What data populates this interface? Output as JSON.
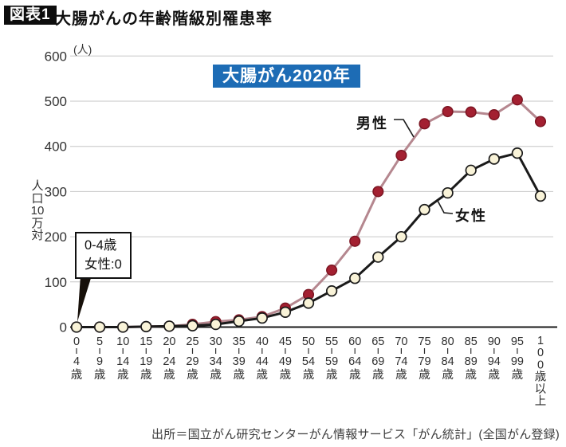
{
  "header": {
    "badge": "図表1",
    "title": "大腸がんの年齢階級別罹患率"
  },
  "chart_data": {
    "type": "line",
    "title_box": "大腸がん2020年",
    "unit_label": "(人)",
    "y_axis_title": "人口10万対",
    "categories": [
      "0-4歳",
      "5-9歳",
      "10-14歳",
      "15-19歳",
      "20-24歳",
      "25-29歳",
      "30-34歳",
      "35-39歳",
      "40-44歳",
      "45-49歳",
      "50-54歳",
      "55-59歳",
      "60-64歳",
      "65-69歳",
      "70-74歳",
      "75-79歳",
      "80-84歳",
      "85-89歳",
      "90-94歳",
      "95-99歳",
      "100歳以上"
    ],
    "series": [
      {
        "name": "男性",
        "values": [
          0,
          0,
          0,
          1,
          2,
          6,
          12,
          16,
          23,
          42,
          72,
          126,
          190,
          300,
          380,
          450,
          477,
          476,
          470,
          503,
          455
        ],
        "line_color": "#b5878f",
        "marker_fill": "#a32031",
        "marker_stroke": "#7c1522"
      },
      {
        "name": "女性",
        "values": [
          0,
          0,
          0,
          1,
          2,
          3,
          6,
          13,
          20,
          33,
          53,
          80,
          108,
          155,
          200,
          260,
          297,
          347,
          372,
          385,
          290
        ],
        "line_color": "#1a1a1a",
        "marker_fill": "#f9f3d8",
        "marker_stroke": "#1a1a1a"
      }
    ],
    "ylim": [
      0,
      600
    ],
    "ytick_step": 100,
    "grid": true,
    "legend_position": "inline-callouts",
    "annotation": {
      "line1": "0-4歳",
      "line2": "女性:0"
    },
    "source": "出所＝国立がん研究センターがん情報サービス「がん統計」(全国がん登録)"
  },
  "colors": {
    "accent_blue": "#1d6cb5",
    "grid": "#c6c6c6",
    "axis": "#1a1a1a",
    "tick_text": "#333333"
  }
}
